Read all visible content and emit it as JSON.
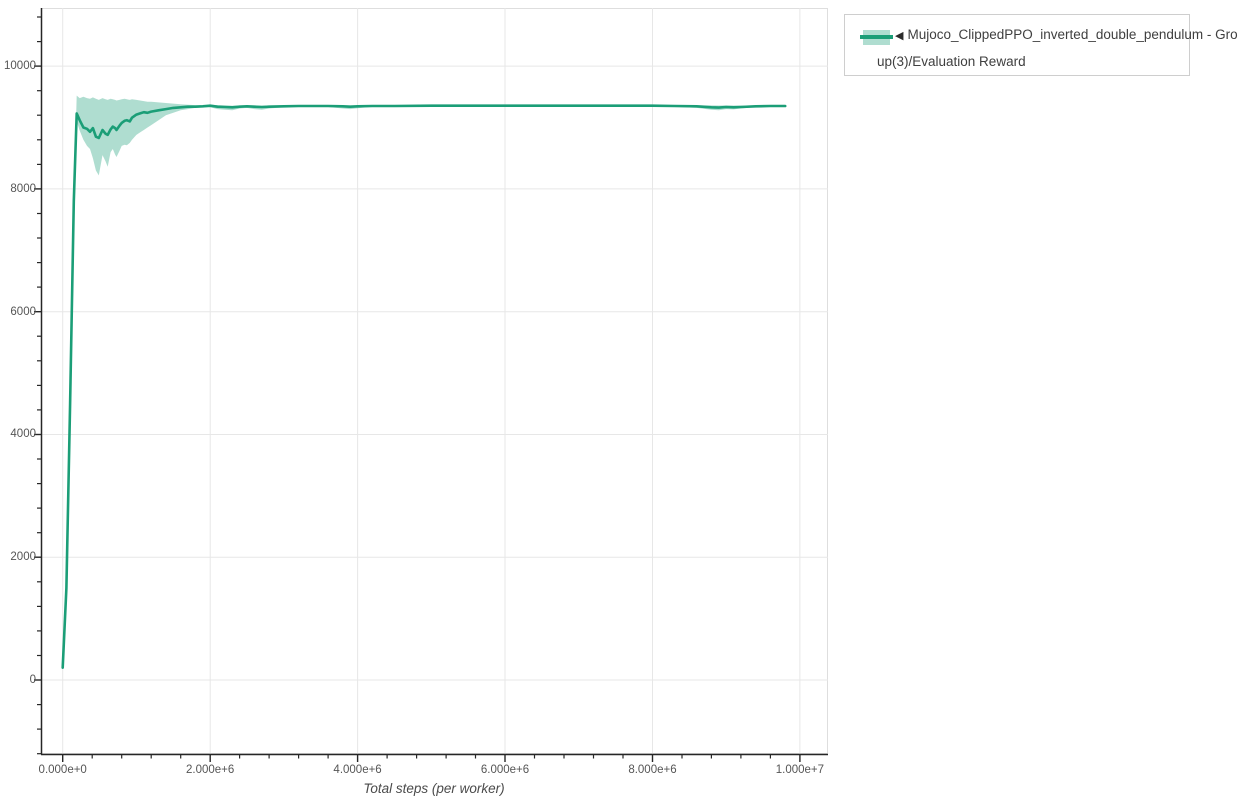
{
  "page": {
    "background": "#ffffff"
  },
  "colors": {
    "accent": "#1b9e77",
    "grid": "#e7e7e7",
    "outline": "#dedede",
    "spine": "#262626",
    "tick_label": "#555555",
    "axis_title": "#4a4a4a",
    "legend_border": "#cecece",
    "legend_text": "#3f3f3f"
  },
  "legend": {
    "marker": "◀",
    "label_lines": [
      "Mujoco_ClippedPPO_inverted_double_pendulum - Gro",
      "up(3)/Evaluation Reward"
    ]
  },
  "chart_data": {
    "type": "line",
    "title": "",
    "xlabel": "Total steps (per worker)",
    "ylabel": "",
    "grid": true,
    "legend_position": "outside-top-right",
    "xlim": [
      -294500,
      10381000
    ],
    "ylim": [
      -1205,
      10947
    ],
    "x_minor_step": 400000,
    "y_minor_step": 400,
    "x_ticks": [
      {
        "value": 0,
        "label": "0.000e+0"
      },
      {
        "value": 2000000,
        "label": "2.000e+6"
      },
      {
        "value": 4000000,
        "label": "4.000e+6"
      },
      {
        "value": 6000000,
        "label": "6.000e+6"
      },
      {
        "value": 8000000,
        "label": "8.000e+6"
      },
      {
        "value": 10000000,
        "label": "1.000e+7"
      }
    ],
    "y_ticks": [
      {
        "value": 0,
        "label": "0"
      },
      {
        "value": 2000,
        "label": "2000"
      },
      {
        "value": 4000,
        "label": "4000"
      },
      {
        "value": 6000,
        "label": "6000"
      },
      {
        "value": 8000,
        "label": "8000"
      },
      {
        "value": 10000,
        "label": "10000"
      }
    ],
    "series": [
      {
        "name": "◀ Mujoco_ClippedPPO_inverted_double_pendulum - Group(3)/Evaluation Reward",
        "line_color": "#1b9e77",
        "band_alpha": 0.35,
        "x": [
          0,
          50000,
          100000,
          150000,
          190000,
          230000,
          280000,
          330000,
          370000,
          410000,
          450000,
          490000,
          540000,
          580000,
          610000,
          650000,
          680000,
          710000,
          730000,
          770000,
          800000,
          840000,
          870000,
          910000,
          940000,
          1000000,
          1050000,
          1100000,
          1150000,
          1200000,
          1300000,
          1400000,
          1500000,
          1600000,
          1700000,
          1800000,
          1900000,
          2000000,
          2100000,
          2200000,
          2300000,
          2400000,
          2500000,
          2600000,
          2700000,
          2800000,
          3000000,
          3200000,
          3400000,
          3600000,
          3800000,
          3900000,
          4000000,
          4200000,
          4500000,
          5000000,
          5500000,
          6000000,
          6500000,
          7000000,
          7500000,
          8000000,
          8300000,
          8600000,
          8800000,
          8900000,
          9000000,
          9100000,
          9200000,
          9400000,
          9600000,
          9800000
        ],
        "mean": [
          200,
          1500,
          4500,
          7800,
          9230,
          9120,
          9000,
          8980,
          8930,
          8990,
          8850,
          8830,
          8960,
          8900,
          8880,
          8970,
          9015,
          8990,
          8960,
          9030,
          9075,
          9110,
          9120,
          9100,
          9160,
          9210,
          9230,
          9250,
          9240,
          9260,
          9280,
          9300,
          9320,
          9330,
          9340,
          9340,
          9345,
          9355,
          9340,
          9335,
          9330,
          9340,
          9345,
          9340,
          9335,
          9340,
          9345,
          9350,
          9350,
          9350,
          9345,
          9340,
          9345,
          9350,
          9350,
          9355,
          9355,
          9355,
          9355,
          9355,
          9355,
          9355,
          9350,
          9345,
          9330,
          9325,
          9335,
          9330,
          9335,
          9345,
          9350,
          9350
        ],
        "lower": [
          200,
          1500,
          4500,
          7800,
          9100,
          8950,
          8800,
          8700,
          8650,
          8500,
          8300,
          8220,
          8550,
          8450,
          8360,
          8600,
          8650,
          8560,
          8520,
          8620,
          8700,
          8720,
          8710,
          8750,
          8800,
          8880,
          8920,
          8960,
          9000,
          9040,
          9120,
          9200,
          9240,
          9280,
          9300,
          9320,
          9330,
          9330,
          9300,
          9290,
          9280,
          9310,
          9320,
          9300,
          9290,
          9310,
          9330,
          9340,
          9340,
          9335,
          9310,
          9300,
          9315,
          9340,
          9345,
          9350,
          9350,
          9350,
          9350,
          9350,
          9350,
          9345,
          9340,
          9320,
          9290,
          9280,
          9300,
          9295,
          9310,
          9335,
          9345,
          9345
        ],
        "upper": [
          200,
          1500,
          4500,
          7800,
          9520,
          9480,
          9500,
          9480,
          9470,
          9490,
          9470,
          9450,
          9480,
          9460,
          9450,
          9470,
          9460,
          9450,
          9440,
          9450,
          9460,
          9470,
          9460,
          9450,
          9460,
          9450,
          9440,
          9430,
          9420,
          9420,
          9410,
          9400,
          9390,
          9380,
          9370,
          9365,
          9360,
          9370,
          9365,
          9360,
          9355,
          9360,
          9360,
          9360,
          9355,
          9360,
          9360,
          9358,
          9358,
          9356,
          9360,
          9360,
          9358,
          9356,
          9355,
          9360,
          9360,
          9360,
          9360,
          9360,
          9360,
          9360,
          9358,
          9360,
          9360,
          9358,
          9360,
          9358,
          9358,
          9356,
          9356,
          9355
        ]
      }
    ]
  }
}
